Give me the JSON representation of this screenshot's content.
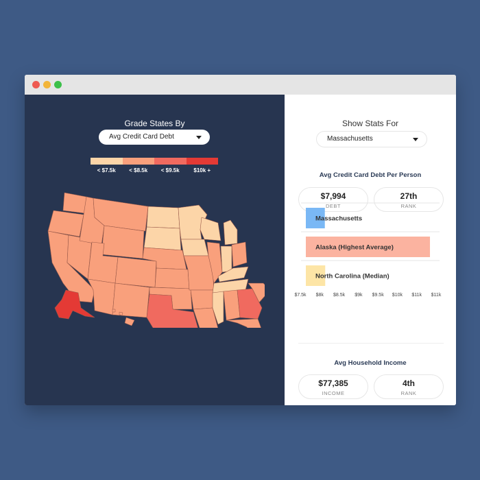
{
  "left_panel": {
    "title": "Grade States By",
    "grade_select": {
      "value": "Avg Credit Card Debt"
    },
    "legend": {
      "items": [
        {
          "label": "< $7.5k",
          "color": "#fcd5a8"
        },
        {
          "label": "< $8.5k",
          "color": "#f9a07c"
        },
        {
          "label": "< $9.5k",
          "color": "#f06a5f"
        },
        {
          "label": "$10k +",
          "color": "#e43a35"
        }
      ]
    }
  },
  "right_panel": {
    "title": "Show Stats For",
    "state_select": {
      "value": "Massachusetts"
    },
    "debt_section": {
      "title": "Avg Credit Card Debt Per Person",
      "debt": {
        "value": "$7,994",
        "label": "DEBT"
      },
      "rank": {
        "value": "27th",
        "label": "RANK"
      }
    },
    "income_section": {
      "title": "Avg Household Income",
      "income": {
        "value": "$77,385",
        "label": "INCOME"
      },
      "rank": {
        "value": "4th",
        "label": "RANK"
      }
    }
  },
  "chart_data": {
    "type": "bar",
    "orientation": "horizontal",
    "categories": [
      "Massachusetts",
      "Alaska (Highest Average)",
      "North Carolina (Median)"
    ],
    "values": [
      7.99,
      10.7,
      8.0
    ],
    "colors": [
      "#7ab8f5",
      "#fbb3a0",
      "#fde5a6"
    ],
    "xticks": [
      "$7.5k",
      "$8k",
      "$8.5k",
      "$9k",
      "$9.5k",
      "$10k",
      "$11k",
      "$11k"
    ],
    "tick_values": [
      7.5,
      8,
      8.5,
      9,
      9.5,
      10,
      10.5,
      11
    ],
    "xlim": [
      7.5,
      11
    ]
  }
}
